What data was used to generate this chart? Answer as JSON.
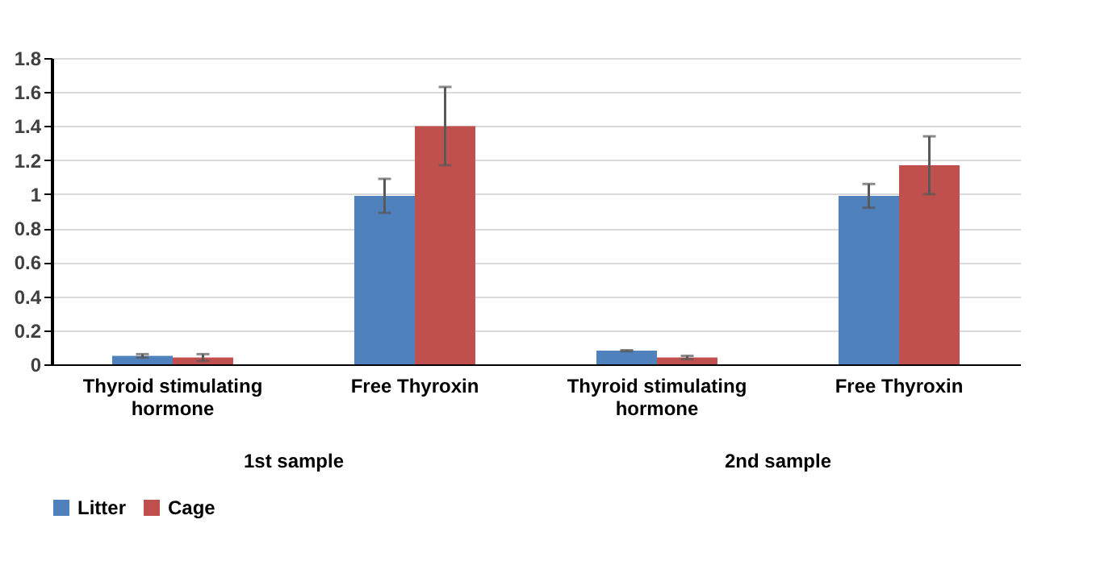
{
  "chart_data": {
    "type": "bar",
    "categories": [
      "Thyroid stimulating hormone",
      "Free Thyroxin",
      "Thyroid stimulating hormone",
      "Free Thyroxin"
    ],
    "series": [
      {
        "name": "Litter",
        "color": "#4f81bd",
        "values": [
          0.05,
          0.99,
          0.08,
          0.99
        ],
        "errors": [
          0.01,
          0.1,
          0.003,
          0.07
        ]
      },
      {
        "name": "Cage",
        "color": "#c0504d",
        "values": [
          0.04,
          1.4,
          0.04,
          1.17
        ],
        "errors": [
          0.02,
          0.23,
          0.01,
          0.17
        ]
      }
    ],
    "ylim": [
      0,
      1.8
    ],
    "yticks": [
      0,
      0.2,
      0.4,
      0.6,
      0.8,
      1,
      1.2,
      1.4,
      1.6,
      1.8
    ],
    "grid": "y",
    "legend": "bottom",
    "annotations": [
      "1st sample",
      "2nd sample"
    ]
  }
}
